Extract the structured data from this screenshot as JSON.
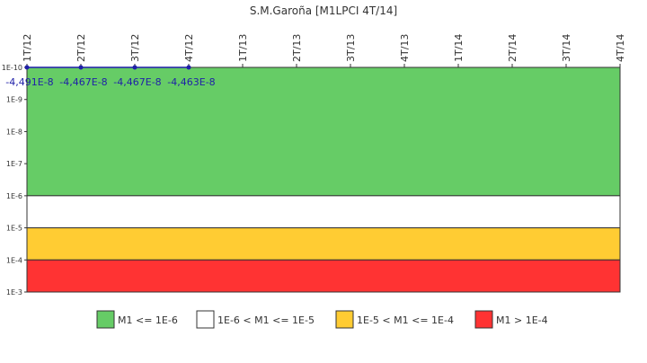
{
  "chart_data": {
    "type": "line",
    "title": "S.M.Garoña [M1LPCI 4T/14]",
    "x_categories": [
      "1T/12",
      "2T/12",
      "3T/12",
      "4T/12",
      "1T/13",
      "2T/13",
      "3T/13",
      "4T/13",
      "1T/14",
      "2T/14",
      "3T/14",
      "4T/14"
    ],
    "y_ticks": [
      "1E-10",
      "1E-9",
      "1E-8",
      "1E-7",
      "1E-6",
      "1E-5",
      "1E-4",
      "1E-3"
    ],
    "y_scale": "log (inverted, 1E-10 at top)",
    "series": [
      {
        "color": "#1f1fa8",
        "points": [
          {
            "x": "1T/12",
            "y": -4.491e-08,
            "label": "-4,491E-8"
          },
          {
            "x": "2T/12",
            "y": -4.467e-08,
            "label": "-4,467E-8"
          },
          {
            "x": "3T/12",
            "y": -4.467e-08,
            "label": "-4,467E-8"
          },
          {
            "x": "4T/12",
            "y": -4.463e-08,
            "label": "-4,463E-8"
          }
        ]
      }
    ],
    "bands": [
      {
        "label": "M1 <= 1E-6",
        "from_exp": -10,
        "to_exp": -6,
        "color": "#66cc66"
      },
      {
        "label": "1E-6 < M1 <= 1E-5",
        "from_exp": -6,
        "to_exp": -5,
        "color": "#ffffff"
      },
      {
        "label": "1E-5 < M1 <= 1E-4",
        "from_exp": -5,
        "to_exp": -4,
        "color": "#ffcc33"
      },
      {
        "label": "M1 > 1E-4",
        "from_exp": -4,
        "to_exp": -3,
        "color": "#ff3333"
      }
    ],
    "legend_position": "bottom"
  }
}
